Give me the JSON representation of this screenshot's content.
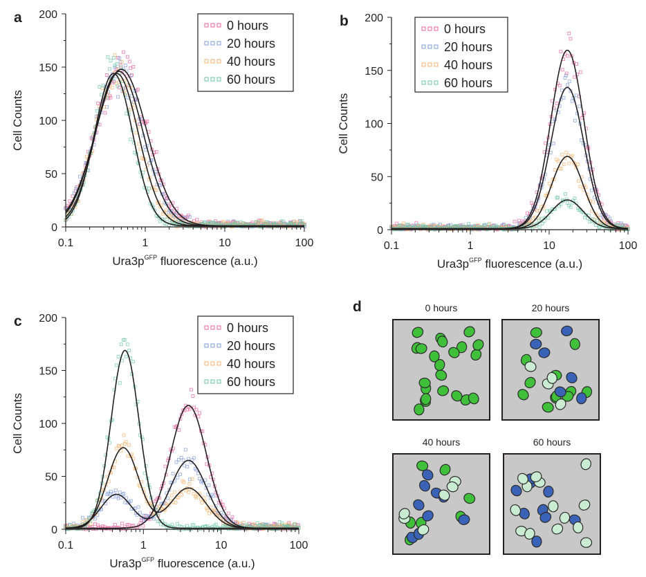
{
  "chart_data": [
    {
      "type": "scatter",
      "panel_label": "a",
      "xlabel": "Ura3p",
      "xlabel_sup": "GFP",
      "xlabel_suffix": " fluorescence (a.u.)",
      "ylabel": "Cell Counts",
      "x_scale": "log",
      "xlim": [
        0.1,
        100
      ],
      "ylim": [
        0,
        200
      ],
      "x_ticks": [
        0.1,
        1,
        10,
        100
      ],
      "x_tick_labels": [
        "0.1",
        "1",
        "10",
        "100"
      ],
      "y_ticks": [
        0,
        50,
        100,
        150,
        200
      ],
      "y_tick_labels": [
        "0",
        "50",
        "100",
        "150",
        "200"
      ],
      "grid": false,
      "legend_position": "top-right",
      "series": [
        {
          "name": "0 hours",
          "color": "#e8609a",
          "fit_peaks": [
            {
              "center": 0.5,
              "height": 147,
              "width": 0.32
            }
          ]
        },
        {
          "name": "20 hours",
          "color": "#7f9bd8",
          "fit_peaks": [
            {
              "center": 0.47,
              "height": 145,
              "width": 0.3
            }
          ]
        },
        {
          "name": "40 hours",
          "color": "#f5b26b",
          "fit_peaks": [
            {
              "center": 0.44,
              "height": 143,
              "width": 0.27
            }
          ]
        },
        {
          "name": "60 hours",
          "color": "#6cc6a6",
          "fit_peaks": [
            {
              "center": 0.4,
              "height": 143,
              "width": 0.24
            }
          ]
        }
      ]
    },
    {
      "type": "scatter",
      "panel_label": "b",
      "xlabel": "Ura3p",
      "xlabel_sup": "GFP",
      "xlabel_suffix": " fluorescence (a.u.)",
      "ylabel": "Cell Counts",
      "x_scale": "log",
      "xlim": [
        0.1,
        100
      ],
      "ylim": [
        0,
        200
      ],
      "x_ticks": [
        0.1,
        1,
        10,
        100
      ],
      "x_tick_labels": [
        "0.1",
        "1",
        "10",
        "100"
      ],
      "y_ticks": [
        0,
        50,
        100,
        150,
        200
      ],
      "y_tick_labels": [
        "0",
        "50",
        "100",
        "150",
        "200"
      ],
      "grid": false,
      "legend_position": "top-left",
      "series": [
        {
          "name": "0 hours",
          "color": "#e8609a",
          "fit_peaks": [
            {
              "center": 17,
              "height": 168,
              "width": 0.21
            }
          ]
        },
        {
          "name": "20 hours",
          "color": "#7f9bd8",
          "fit_peaks": [
            {
              "center": 17,
              "height": 133,
              "width": 0.21
            }
          ]
        },
        {
          "name": "40 hours",
          "color": "#f5b26b",
          "fit_peaks": [
            {
              "center": 17,
              "height": 68,
              "width": 0.2
            }
          ]
        },
        {
          "name": "60 hours",
          "color": "#6cc6a6",
          "fit_peaks": [
            {
              "center": 17,
              "height": 27,
              "width": 0.2
            }
          ]
        }
      ]
    },
    {
      "type": "scatter",
      "panel_label": "c",
      "xlabel": "Ura3p",
      "xlabel_sup": "GFP",
      "xlabel_suffix": " fluorescence (a.u.)",
      "ylabel": "Cell Counts",
      "x_scale": "log",
      "xlim": [
        0.1,
        100
      ],
      "ylim": [
        0,
        200
      ],
      "x_ticks": [
        0.1,
        1,
        10,
        100
      ],
      "x_tick_labels": [
        "0.1",
        "1",
        "10",
        "100"
      ],
      "y_ticks": [
        0,
        50,
        100,
        150,
        200
      ],
      "y_tick_labels": [
        "0",
        "50",
        "100",
        "150",
        "200"
      ],
      "grid": false,
      "legend_position": "top-right",
      "series": [
        {
          "name": "0 hours",
          "color": "#e8609a",
          "fit_peaks": [
            {
              "center": 3.8,
              "height": 116,
              "width": 0.23
            }
          ]
        },
        {
          "name": "20 hours",
          "color": "#7f9bd8",
          "fit_peaks": [
            {
              "center": 0.45,
              "height": 32,
              "width": 0.2
            },
            {
              "center": 3.8,
              "height": 64,
              "width": 0.23
            }
          ]
        },
        {
          "name": "40 hours",
          "color": "#f5b26b",
          "fit_peaks": [
            {
              "center": 0.55,
              "height": 76,
              "width": 0.2
            },
            {
              "center": 3.8,
              "height": 38,
              "width": 0.23
            }
          ]
        },
        {
          "name": "60 hours",
          "color": "#6cc6a6",
          "fit_peaks": [
            {
              "center": 0.58,
              "height": 168,
              "width": 0.18
            }
          ]
        }
      ]
    }
  ],
  "panel_d": {
    "label": "d",
    "images": [
      {
        "label": "0 hours",
        "cells": [
          {
            "green": 22,
            "blue": 0,
            "pale": 0
          }
        ]
      },
      {
        "label": "20 hours",
        "cells": [
          {
            "green": 12,
            "blue": 6,
            "pale": 4
          }
        ]
      },
      {
        "label": "40 hours",
        "cells": [
          {
            "green": 7,
            "blue": 9,
            "pale": 6
          }
        ]
      },
      {
        "label": "60 hours",
        "cells": [
          {
            "green": 0,
            "blue": 9,
            "pale": 14
          }
        ]
      }
    ],
    "colors": {
      "green": "#3fbf3a",
      "blue": "#3a63b8",
      "pale": "#c9ecd2",
      "background": "#c8c8c8"
    }
  }
}
